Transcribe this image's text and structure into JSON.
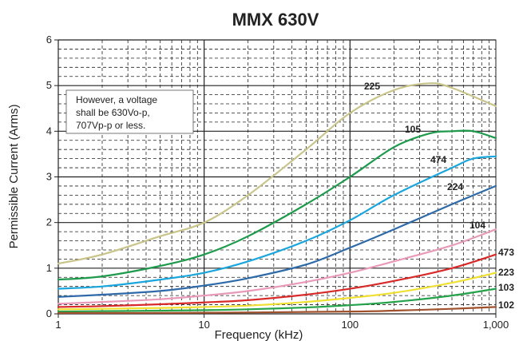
{
  "chart_data": {
    "type": "line",
    "title": "MMX 630V",
    "xlabel": "Frequency (kHz)",
    "ylabel": "Permissible Current (Arms)",
    "x_scale": "log",
    "xlim": [
      1,
      1000
    ],
    "ylim": [
      0,
      6
    ],
    "x_ticks": [
      1,
      10,
      100,
      1000
    ],
    "x_tick_labels": [
      "1",
      "10",
      "100",
      "1,000"
    ],
    "y_ticks": [
      0,
      1,
      2,
      3,
      4,
      5,
      6
    ],
    "y_tick_labels": [
      "0",
      "1",
      "2",
      "3",
      "4",
      "5",
      "6"
    ],
    "grid": true,
    "note": [
      "However, a voltage",
      "shall be 630Vo-p,",
      "707Vp-p or less."
    ],
    "series": [
      {
        "name": "225",
        "color": "#c9c48a",
        "x": [
          1,
          2,
          5,
          10,
          20,
          50,
          100,
          200,
          350,
          500,
          1000
        ],
        "y": [
          1.1,
          1.3,
          1.7,
          2.0,
          2.6,
          3.6,
          4.4,
          4.9,
          5.05,
          4.95,
          4.55
        ]
      },
      {
        "name": "105",
        "color": "#1e9a4c",
        "x": [
          1,
          2,
          5,
          10,
          20,
          50,
          100,
          200,
          350,
          500,
          700,
          1000
        ],
        "y": [
          0.75,
          0.82,
          1.05,
          1.3,
          1.7,
          2.4,
          3.0,
          3.65,
          3.95,
          4.0,
          4.0,
          3.85
        ]
      },
      {
        "name": "474",
        "color": "#1aa6dc",
        "x": [
          1,
          2,
          5,
          10,
          20,
          50,
          100,
          200,
          500,
          700,
          1000
        ],
        "y": [
          0.55,
          0.6,
          0.75,
          0.9,
          1.15,
          1.6,
          2.05,
          2.6,
          3.2,
          3.4,
          3.45
        ]
      },
      {
        "name": "224",
        "color": "#2e6aa8",
        "x": [
          1,
          2,
          5,
          10,
          20,
          50,
          100,
          200,
          500,
          1000
        ],
        "y": [
          0.37,
          0.42,
          0.5,
          0.62,
          0.78,
          1.08,
          1.45,
          1.85,
          2.4,
          2.8
        ]
      },
      {
        "name": "104",
        "color": "#e89ab8",
        "x": [
          1,
          2,
          5,
          10,
          20,
          50,
          100,
          200,
          500,
          1000
        ],
        "y": [
          0.22,
          0.26,
          0.32,
          0.4,
          0.5,
          0.7,
          0.9,
          1.15,
          1.5,
          1.85
        ]
      },
      {
        "name": "473",
        "color": "#d92a2a",
        "x": [
          1,
          2,
          5,
          10,
          20,
          50,
          100,
          200,
          500,
          1000
        ],
        "y": [
          0.15,
          0.17,
          0.21,
          0.25,
          0.3,
          0.42,
          0.55,
          0.72,
          1.0,
          1.3
        ]
      },
      {
        "name": "223",
        "color": "#f0e032",
        "x": [
          1,
          2,
          5,
          10,
          20,
          50,
          100,
          200,
          500,
          1000
        ],
        "y": [
          0.1,
          0.11,
          0.13,
          0.15,
          0.18,
          0.26,
          0.35,
          0.46,
          0.68,
          0.9
        ]
      },
      {
        "name": "103",
        "color": "#26a34a",
        "x": [
          1,
          2,
          5,
          10,
          20,
          50,
          100,
          200,
          500,
          1000
        ],
        "y": [
          0.05,
          0.06,
          0.07,
          0.08,
          0.1,
          0.14,
          0.19,
          0.26,
          0.4,
          0.55
        ]
      },
      {
        "name": "102",
        "color": "#a0522d",
        "x": [
          1,
          10,
          100,
          200,
          500,
          1000
        ],
        "y": [
          0.02,
          0.025,
          0.05,
          0.07,
          0.11,
          0.15
        ]
      }
    ]
  }
}
